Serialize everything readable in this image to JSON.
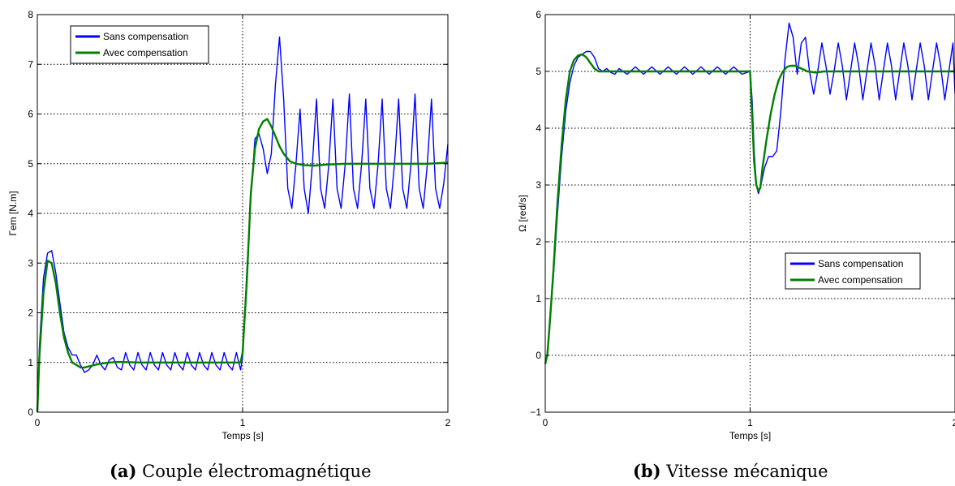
{
  "chart_data": [
    {
      "type": "line",
      "title": "",
      "xlabel": "Temps [s]",
      "ylabel": "Γem [N.m]",
      "xlim": [
        0,
        2
      ],
      "ylim": [
        0,
        8
      ],
      "xticks": [
        0,
        1,
        2
      ],
      "yticks": [
        0,
        1,
        2,
        3,
        4,
        5,
        6,
        7,
        8
      ],
      "grid": true,
      "legend_position": "top-left",
      "caption": {
        "letter": "(a)",
        "text": "Couple électromagnétique"
      },
      "series": [
        {
          "name": "Sans compensation",
          "color": "#0000ff",
          "x": [
            0,
            0.01,
            0.03,
            0.05,
            0.07,
            0.09,
            0.11,
            0.13,
            0.15,
            0.17,
            0.19,
            0.21,
            0.23,
            0.25,
            0.27,
            0.29,
            0.31,
            0.33,
            0.35,
            0.37,
            0.39,
            0.41,
            0.43,
            0.45,
            0.47,
            0.49,
            0.51,
            0.53,
            0.55,
            0.57,
            0.59,
            0.61,
            0.63,
            0.65,
            0.67,
            0.69,
            0.71,
            0.73,
            0.75,
            0.77,
            0.79,
            0.81,
            0.83,
            0.85,
            0.87,
            0.89,
            0.91,
            0.93,
            0.95,
            0.97,
            0.99,
            1.0,
            1.02,
            1.04,
            1.06,
            1.08,
            1.1,
            1.12,
            1.14,
            1.16,
            1.18,
            1.2,
            1.22,
            1.24,
            1.26,
            1.28,
            1.3,
            1.32,
            1.34,
            1.36,
            1.38,
            1.4,
            1.42,
            1.44,
            1.46,
            1.48,
            1.5,
            1.52,
            1.54,
            1.56,
            1.58,
            1.6,
            1.62,
            1.64,
            1.66,
            1.68,
            1.7,
            1.72,
            1.74,
            1.76,
            1.78,
            1.8,
            1.82,
            1.84,
            1.86,
            1.88,
            1.9,
            1.92,
            1.94,
            1.96,
            1.98,
            2.0
          ],
          "y": [
            0,
            1.3,
            2.7,
            3.2,
            3.25,
            2.8,
            2.2,
            1.6,
            1.3,
            1.15,
            1.15,
            0.95,
            0.8,
            0.85,
            0.95,
            1.15,
            0.95,
            0.85,
            1.05,
            1.1,
            0.9,
            0.85,
            1.2,
            0.95,
            0.85,
            1.2,
            0.95,
            0.85,
            1.2,
            0.95,
            0.85,
            1.2,
            0.95,
            0.85,
            1.2,
            0.95,
            0.85,
            1.2,
            0.95,
            0.85,
            1.2,
            0.95,
            0.85,
            1.2,
            0.95,
            0.85,
            1.2,
            0.95,
            0.85,
            1.2,
            0.85,
            1.1,
            2.8,
            4.3,
            5.5,
            5.6,
            5.3,
            4.8,
            5.2,
            6.6,
            7.55,
            6.3,
            4.5,
            4.1,
            5.0,
            6.1,
            4.5,
            4.0,
            5.0,
            6.3,
            4.5,
            4.1,
            5.0,
            6.3,
            4.5,
            4.1,
            5.0,
            6.4,
            4.5,
            4.1,
            5.0,
            6.3,
            4.5,
            4.1,
            5.0,
            6.3,
            4.5,
            4.1,
            5.0,
            6.3,
            4.5,
            4.1,
            5.0,
            6.4,
            4.5,
            4.1,
            5.0,
            6.3,
            4.5,
            4.1,
            4.6,
            5.4
          ]
        },
        {
          "name": "Avec compensation",
          "color": "#008000",
          "x": [
            0,
            0.01,
            0.03,
            0.05,
            0.07,
            0.09,
            0.11,
            0.13,
            0.15,
            0.17,
            0.19,
            0.21,
            0.23,
            0.26,
            0.3,
            0.35,
            0.4,
            0.5,
            0.6,
            0.7,
            0.8,
            0.9,
            0.99,
            1.0,
            1.02,
            1.04,
            1.06,
            1.08,
            1.1,
            1.12,
            1.14,
            1.16,
            1.18,
            1.2,
            1.23,
            1.26,
            1.3,
            1.35,
            1.4,
            1.5,
            1.6,
            1.7,
            1.8,
            1.9,
            2.0
          ],
          "y": [
            0,
            1.1,
            2.4,
            3.05,
            3.0,
            2.6,
            2.0,
            1.5,
            1.2,
            1.0,
            0.95,
            0.9,
            0.9,
            0.93,
            0.97,
            1.0,
            1.01,
            1.0,
            1.0,
            1.0,
            1.0,
            1.0,
            1.0,
            1.2,
            2.6,
            4.4,
            5.3,
            5.7,
            5.85,
            5.9,
            5.75,
            5.55,
            5.35,
            5.2,
            5.05,
            5.0,
            4.97,
            4.96,
            4.98,
            5.0,
            5.0,
            5.0,
            5.0,
            5.0,
            5.02
          ]
        }
      ]
    },
    {
      "type": "line",
      "title": "",
      "xlabel": "Temps [s]",
      "ylabel": "Ω [red/s]",
      "xlim": [
        0,
        2
      ],
      "ylim": [
        -1,
        6
      ],
      "xticks": [
        0,
        1,
        2
      ],
      "yticks": [
        -1,
        0,
        1,
        2,
        3,
        4,
        5,
        6
      ],
      "grid": true,
      "legend_position": "center-right",
      "caption": {
        "letter": "(b)",
        "text": "Vitesse mécanique"
      },
      "series": [
        {
          "name": "Sans compensation",
          "color": "#0000ff",
          "x": [
            0,
            0.01,
            0.02,
            0.04,
            0.06,
            0.08,
            0.1,
            0.12,
            0.14,
            0.16,
            0.18,
            0.2,
            0.22,
            0.24,
            0.26,
            0.28,
            0.3,
            0.32,
            0.34,
            0.36,
            0.4,
            0.44,
            0.48,
            0.52,
            0.56,
            0.6,
            0.64,
            0.68,
            0.72,
            0.76,
            0.8,
            0.84,
            0.88,
            0.92,
            0.96,
            1.0,
            1.01,
            1.02,
            1.03,
            1.04,
            1.05,
            1.07,
            1.09,
            1.11,
            1.13,
            1.15,
            1.17,
            1.19,
            1.21,
            1.23,
            1.25,
            1.27,
            1.29,
            1.31,
            1.33,
            1.35,
            1.37,
            1.39,
            1.41,
            1.43,
            1.45,
            1.47,
            1.49,
            1.51,
            1.53,
            1.55,
            1.57,
            1.59,
            1.61,
            1.63,
            1.65,
            1.67,
            1.69,
            1.71,
            1.73,
            1.75,
            1.77,
            1.79,
            1.81,
            1.83,
            1.85,
            1.87,
            1.89,
            1.91,
            1.93,
            1.95,
            1.97,
            1.99,
            2.0
          ],
          "y": [
            -0.15,
            0.0,
            0.4,
            1.4,
            2.5,
            3.5,
            4.3,
            4.8,
            5.1,
            5.25,
            5.3,
            5.35,
            5.35,
            5.25,
            5.05,
            5.0,
            5.05,
            4.98,
            4.95,
            5.05,
            4.95,
            5.08,
            4.95,
            5.08,
            4.95,
            5.08,
            4.95,
            5.08,
            4.95,
            5.08,
            4.95,
            5.08,
            4.95,
            5.08,
            4.95,
            5.0,
            4.5,
            3.6,
            3.0,
            2.85,
            2.95,
            3.3,
            3.5,
            3.5,
            3.6,
            4.3,
            5.2,
            5.85,
            5.6,
            4.95,
            5.5,
            5.6,
            5.0,
            4.6,
            5.0,
            5.5,
            5.1,
            4.6,
            5.0,
            5.5,
            5.1,
            4.5,
            5.0,
            5.5,
            5.1,
            4.5,
            5.0,
            5.5,
            5.1,
            4.5,
            5.0,
            5.5,
            5.1,
            4.5,
            5.0,
            5.5,
            5.1,
            4.5,
            5.0,
            5.5,
            5.1,
            4.5,
            5.0,
            5.5,
            5.1,
            4.5,
            5.0,
            5.5,
            4.6
          ]
        },
        {
          "name": "Avec compensation",
          "color": "#008000",
          "x": [
            0,
            0.01,
            0.02,
            0.04,
            0.06,
            0.08,
            0.1,
            0.12,
            0.14,
            0.16,
            0.18,
            0.2,
            0.22,
            0.24,
            0.26,
            0.3,
            0.35,
            0.4,
            0.5,
            0.6,
            0.7,
            0.8,
            0.9,
            1.0,
            1.01,
            1.02,
            1.03,
            1.04,
            1.05,
            1.06,
            1.08,
            1.1,
            1.12,
            1.14,
            1.16,
            1.18,
            1.2,
            1.22,
            1.25,
            1.28,
            1.32,
            1.36,
            1.4,
            1.5,
            1.6,
            1.7,
            1.8,
            1.9,
            2.0
          ],
          "y": [
            -0.15,
            0.0,
            0.45,
            1.5,
            2.7,
            3.7,
            4.5,
            5.0,
            5.2,
            5.28,
            5.3,
            5.25,
            5.15,
            5.05,
            5.0,
            5.0,
            5.0,
            5.0,
            5.0,
            5.0,
            5.0,
            5.0,
            5.0,
            5.0,
            4.2,
            3.4,
            3.0,
            2.9,
            2.95,
            3.3,
            3.8,
            4.25,
            4.6,
            4.85,
            5.0,
            5.08,
            5.1,
            5.1,
            5.05,
            5.0,
            4.98,
            5.0,
            5.0,
            5.0,
            5.0,
            5.0,
            5.0,
            5.0,
            5.0
          ]
        }
      ]
    }
  ]
}
